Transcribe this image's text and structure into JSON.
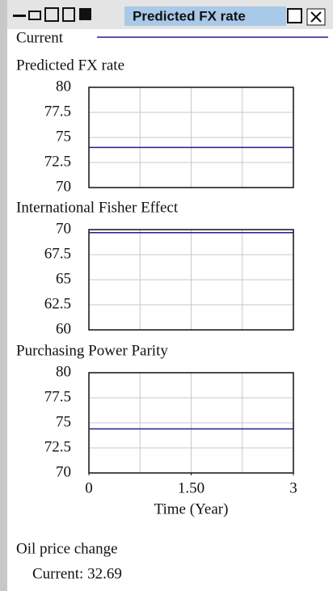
{
  "window": {
    "title": "Predicted FX rate"
  },
  "legend": {
    "label": "Current",
    "color": "#1f1f8f"
  },
  "chart_data": [
    {
      "type": "line",
      "title": "Predicted FX rate",
      "x": [
        0,
        3
      ],
      "series": [
        {
          "name": "Current",
          "color": "#1f1f8f",
          "values": [
            74,
            74
          ]
        }
      ],
      "xlim": [
        0,
        3
      ],
      "xgrid": [
        0.75,
        1.5,
        2.25
      ],
      "ylim": [
        70,
        80
      ],
      "yticks": [
        80,
        77.5,
        75,
        72.5,
        70
      ],
      "grid": true
    },
    {
      "type": "line",
      "title": "International Fisher Effect",
      "x": [
        0,
        3
      ],
      "series": [
        {
          "name": "Current",
          "color": "#1f1f8f",
          "values": [
            69.7,
            69.7
          ]
        }
      ],
      "xlim": [
        0,
        3
      ],
      "xgrid": [
        0.75,
        1.5,
        2.25
      ],
      "ylim": [
        60,
        70
      ],
      "yticks": [
        70,
        67.5,
        65,
        62.5,
        60
      ],
      "grid": true
    },
    {
      "type": "line",
      "title": "Purchasing Power Parity",
      "x": [
        0,
        3
      ],
      "series": [
        {
          "name": "Current",
          "color": "#1f1f8f",
          "values": [
            74.4,
            74.4
          ]
        }
      ],
      "xlim": [
        0,
        3
      ],
      "xgrid": [
        0.75,
        1.5,
        2.25
      ],
      "xticks": [
        0,
        {
          "value": 1.5,
          "label": "1.50"
        },
        3
      ],
      "xlabel": "Time (Year)",
      "ylim": [
        70,
        80
      ],
      "yticks": [
        80,
        77.5,
        75,
        72.5,
        70
      ],
      "grid": true
    }
  ],
  "footer": {
    "label": "Oil price change",
    "value_text": "Current: 32.69"
  }
}
